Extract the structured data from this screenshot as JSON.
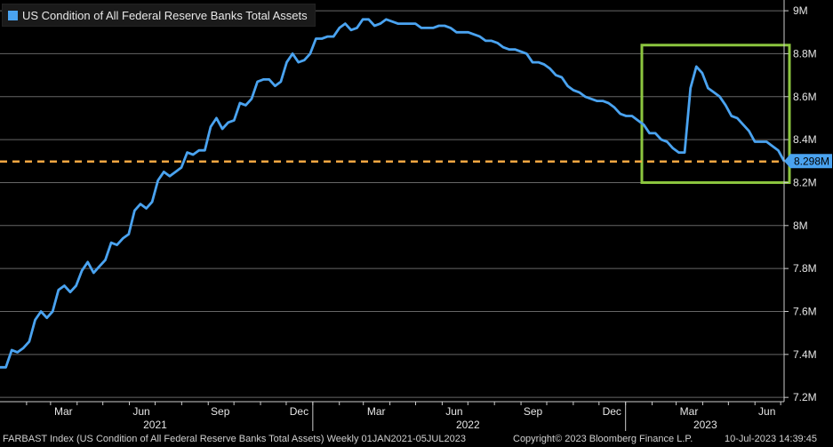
{
  "legend": {
    "label": "US Condition of All Federal Reserve Banks Total Assets",
    "color": "#4aa3f0"
  },
  "footer": {
    "left": "FARBAST Index (US Condition of All Federal Reserve Banks Total Assets)  Weekly 01JAN2021-05JUL2023",
    "center": "Copyright© 2023 Bloomberg Finance L.P.",
    "right": "10-Jul-2023 14:39:45"
  },
  "colors": {
    "line": "#4aa3f0",
    "reference": "#f5a742",
    "highlight_box": "#8cc63f",
    "grid": "#666666",
    "background": "#000000"
  },
  "chart_data": {
    "type": "line",
    "x_range": [
      "2021-01-01",
      "2023-07-05"
    ],
    "y_range": [
      7.18,
      9.05
    ],
    "yticks": [
      7.2,
      7.4,
      7.6,
      7.8,
      8.0,
      8.2,
      8.4,
      8.6,
      8.8,
      9.0
    ],
    "ytick_labels": [
      "7.2M",
      "7.4M",
      "7.6M",
      "7.8M",
      "8M",
      "8.2M",
      "8.4M",
      "8.6M",
      "8.8M",
      "9M"
    ],
    "month_labels": [
      "Mar",
      "Jun",
      "Sep",
      "Dec",
      "Mar",
      "Jun",
      "Sep",
      "Dec",
      "Mar",
      "Jun"
    ],
    "year_labels": [
      "2021",
      "2022",
      "2023"
    ],
    "grid": true,
    "last_value_label": "8.298M",
    "reference_line": 8.298,
    "highlight_period": {
      "x_start": "2023-01-20",
      "x_end": "2023-07-05",
      "y_min": 8.2,
      "y_max": 8.84
    },
    "series": [
      {
        "values": [
          7.34,
          7.34,
          7.42,
          7.41,
          7.43,
          7.46,
          7.56,
          7.6,
          7.57,
          7.6,
          7.7,
          7.72,
          7.69,
          7.72,
          7.79,
          7.83,
          7.78,
          7.81,
          7.84,
          7.92,
          7.91,
          7.94,
          7.96,
          8.07,
          8.1,
          8.08,
          8.11,
          8.21,
          8.25,
          8.23,
          8.25,
          8.27,
          8.34,
          8.33,
          8.35,
          8.35,
          8.46,
          8.5,
          8.45,
          8.48,
          8.49,
          8.57,
          8.56,
          8.59,
          8.67,
          8.68,
          8.68,
          8.65,
          8.67,
          8.76,
          8.8,
          8.76,
          8.77,
          8.8,
          8.87,
          8.87,
          8.88,
          8.88,
          8.92,
          8.94,
          8.91,
          8.92,
          8.96,
          8.96,
          8.93,
          8.94,
          8.96,
          8.95,
          8.94,
          8.94,
          8.94,
          8.94,
          8.92,
          8.92,
          8.92,
          8.93,
          8.93,
          8.92,
          8.9,
          8.9,
          8.9,
          8.89,
          8.88,
          8.86,
          8.86,
          8.85,
          8.83,
          8.82,
          8.82,
          8.81,
          8.8,
          8.76,
          8.76,
          8.75,
          8.73,
          8.7,
          8.69,
          8.65,
          8.63,
          8.62,
          8.6,
          8.59,
          8.58,
          8.58,
          8.57,
          8.55,
          8.52,
          8.51,
          8.51,
          8.49,
          8.47,
          8.43,
          8.43,
          8.4,
          8.39,
          8.36,
          8.34,
          8.34,
          8.64,
          8.74,
          8.71,
          8.64,
          8.62,
          8.6,
          8.56,
          8.51,
          8.5,
          8.47,
          8.44,
          8.39,
          8.39,
          8.39,
          8.37,
          8.35,
          8.3
        ]
      }
    ]
  }
}
